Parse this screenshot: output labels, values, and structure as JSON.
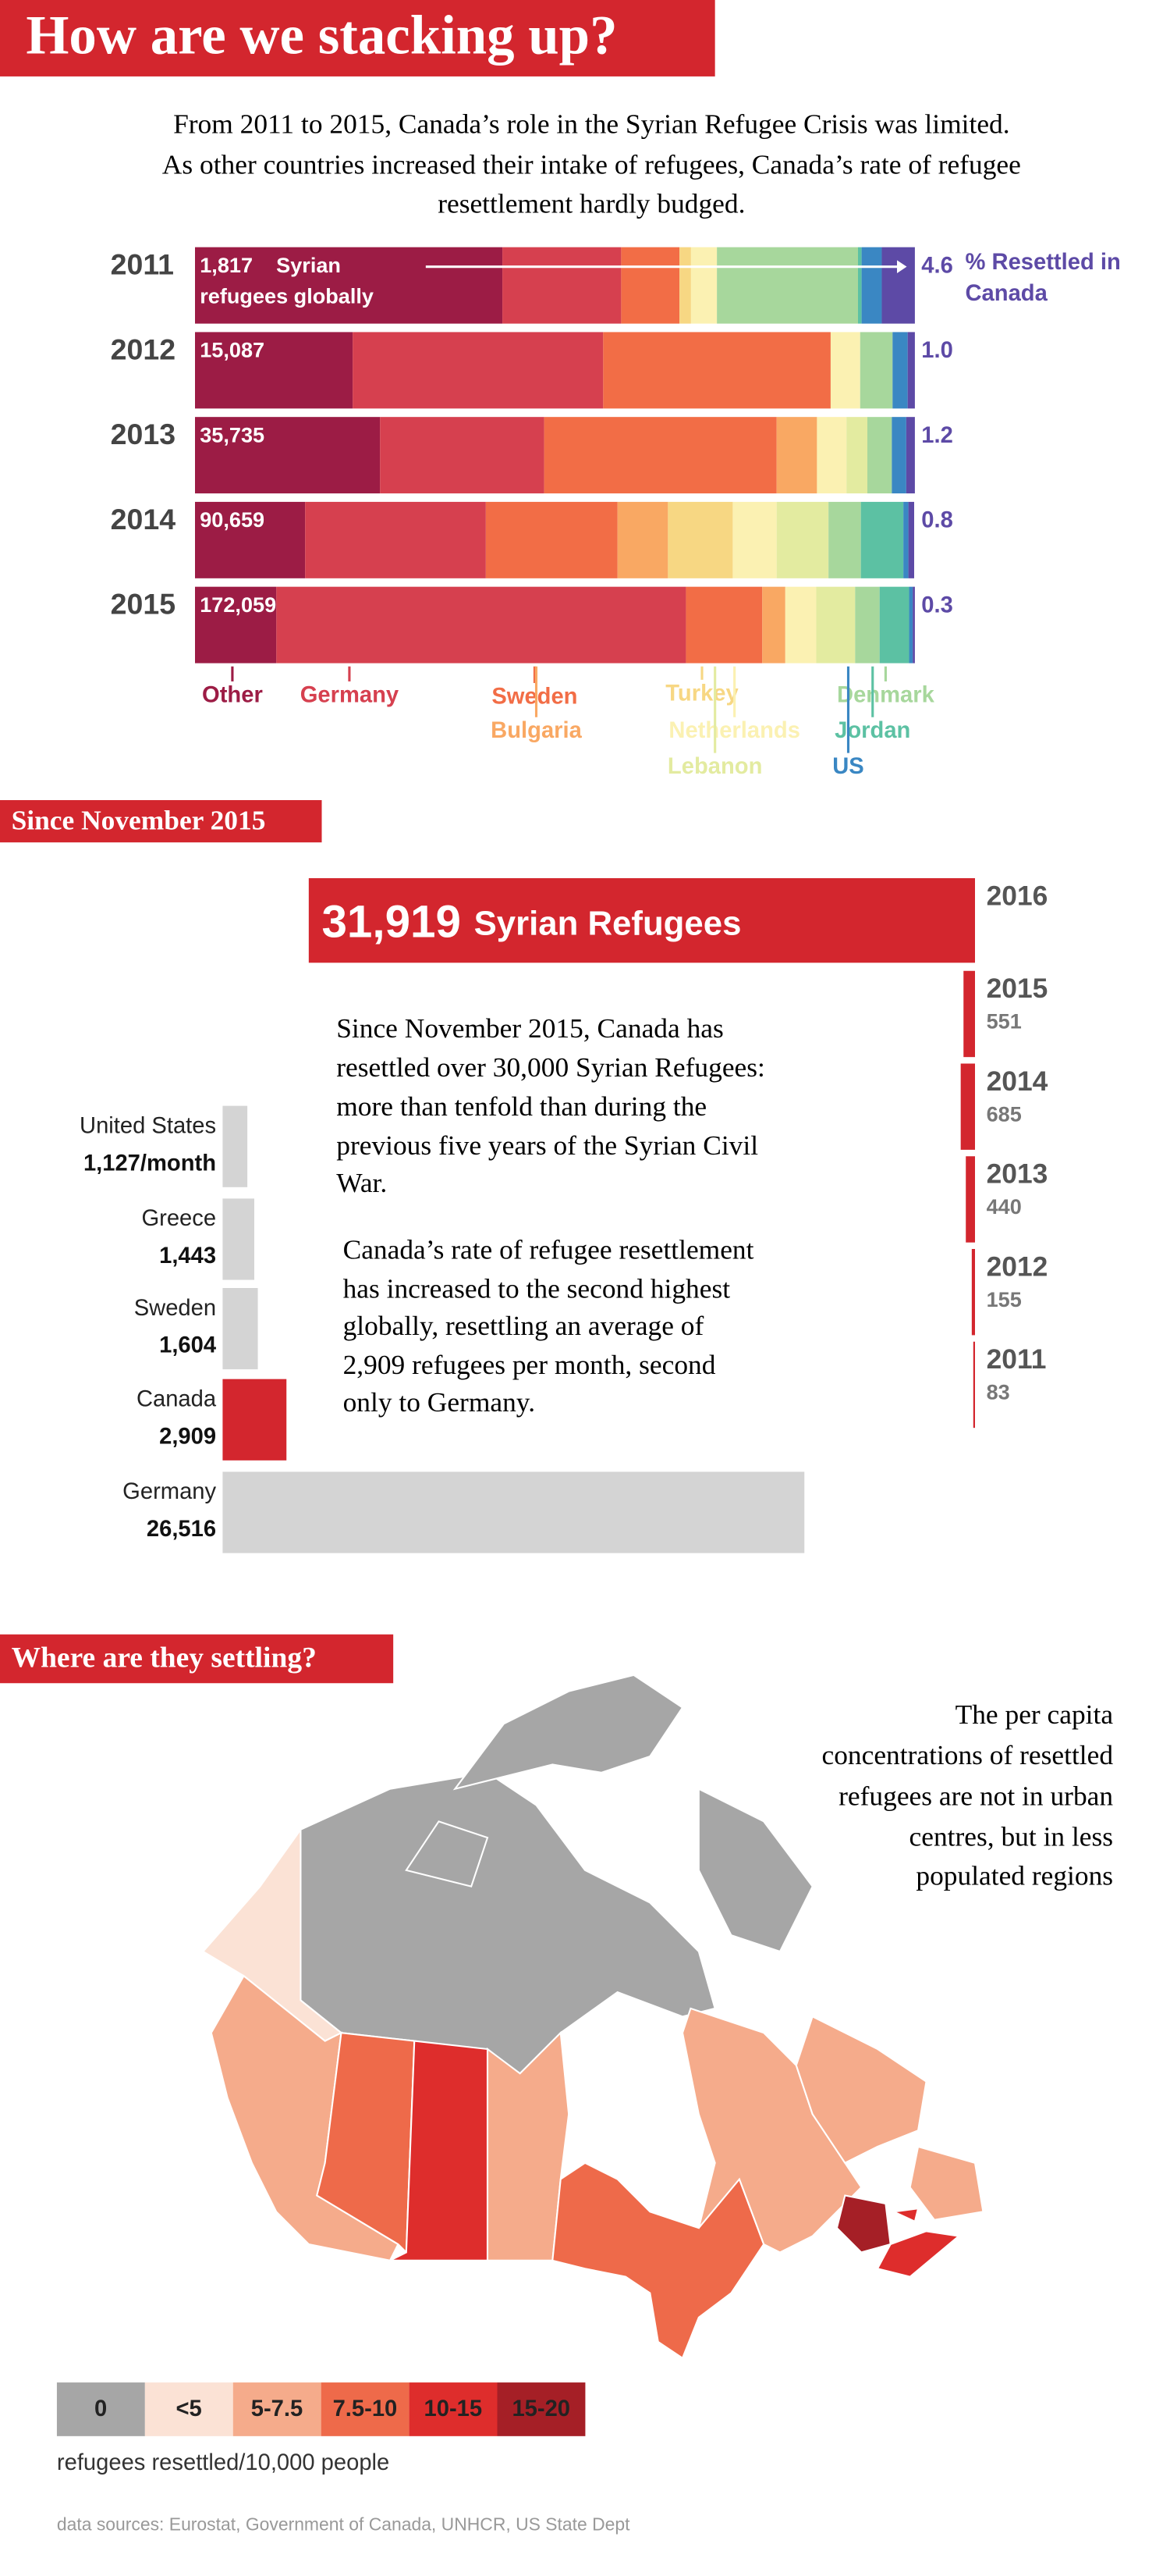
{
  "title": "How are we stacking up?",
  "intro": [
    "From 2011 to 2015, Canada’s role in the Syrian Refugee Crisis was limited.",
    "As other countries increased their intake of refugees, Canada’s rate of refugee",
    "resettlement hardly budged."
  ],
  "chart_data": [
    {
      "type": "stacked-bar",
      "categories": [
        "2011",
        "2012",
        "2013",
        "2014",
        "2015"
      ],
      "xlim": [
        0,
        100
      ],
      "series": [
        {
          "name": "Other",
          "color": "#9c1c45",
          "values": [
            42.7,
            21.9,
            25.7,
            15.3,
            11.3
          ]
        },
        {
          "name": "Germany",
          "color": "#d6404f",
          "values": [
            16.5,
            34.8,
            22.8,
            25.1,
            56.9
          ]
        },
        {
          "name": "Sweden",
          "color": "#f26d46",
          "values": [
            8.1,
            31.6,
            32.3,
            18.3,
            10.6
          ]
        },
        {
          "name": "Bulgaria",
          "color": "#f9a863",
          "values": [
            0,
            0,
            5.6,
            7,
            3.2
          ]
        },
        {
          "name": "Turkey",
          "color": "#f7d783",
          "values": [
            1.6,
            0,
            0,
            9,
            0
          ]
        },
        {
          "name": "Netherlands",
          "color": "#fbf1b2",
          "values": [
            3.6,
            4.1,
            4.1,
            6.1,
            4.3
          ]
        },
        {
          "name": "Lebanon",
          "color": "#e3eba0",
          "values": [
            0,
            0,
            2.9,
            7.2,
            5.4
          ]
        },
        {
          "name": "Denmark",
          "color": "#a7d79c",
          "values": [
            19.6,
            4.5,
            3.4,
            4.5,
            3.4
          ]
        },
        {
          "name": "Jordan",
          "color": "#5cc1a3",
          "values": [
            0.5,
            0,
            0,
            5.9,
            4.1
          ]
        },
        {
          "name": "US",
          "color": "#3a87c3",
          "values": [
            2.8,
            2.1,
            2,
            0.7,
            0.5
          ]
        },
        {
          "name": "Canada",
          "color": "#5d4aa6",
          "values": [
            4.6,
            1,
            1.2,
            0.8,
            0.3
          ],
          "value_labels": [
            "4.6",
            "1.0",
            "1.2",
            "0.8",
            "0.3"
          ]
        }
      ],
      "totals": {
        "values": [
          1817,
          15087,
          35735,
          90659,
          172059
        ],
        "value_labels": [
          "1,817",
          "15,087",
          "35,735",
          "90,659",
          "172,059"
        ]
      },
      "totals_note": [
        "Syrian",
        "refugees globally"
      ],
      "canada_note": "% Resettled in"
    },
    {
      "type": "bar",
      "title": "Since November 2015",
      "categories": [
        "2016",
        "2015",
        "2014",
        "2013",
        "2012",
        "2011"
      ],
      "values": [
        31919,
        551,
        685,
        440,
        155,
        83
      ],
      "value_labels": [
        "31,919",
        "551",
        "685",
        "440",
        "155",
        "83"
      ],
      "color": "#d3262e",
      "note": "Syrian Refugees"
    },
    {
      "type": "bar",
      "categories": [
        "United States",
        "Greece",
        "Sweden",
        "Canada",
        "Germany"
      ],
      "values": [
        1127,
        1443,
        1604,
        2909,
        26516
      ],
      "value_labels": [
        "1,127/month",
        "1,443",
        "1,604",
        "2,909",
        "26,516"
      ],
      "colors": [
        "#d4d4d4",
        "#d4d4d4",
        "#d4d4d4",
        "#d3262e",
        "#d4d4d4"
      ]
    }
  ],
  "paragraphs": [
    [
      "Since November 2015, Canada has",
      "resettled over 30,000 Syrian Refugees:",
      "more than tenfold than during the",
      "previous five years of the Syrian Civil",
      "War."
    ],
    [
      "Canada’s rate of refugee resettlement",
      "has increased to the second highest",
      "globally, resettling an average of",
      "2,909 refugees per month, second",
      "only to Germany."
    ]
  ],
  "map": {
    "title": "Where are they settling?",
    "note": [
      "The per capita",
      "concentrations of resettled",
      "refugees are not in urban",
      "centres, but in less",
      "populated regions"
    ],
    "legend": [
      {
        "label": "0",
        "color": "#a6a6a6"
      },
      {
        "label": "<5",
        "color": "#fbe2d5"
      },
      {
        "label": "5-7.5",
        "color": "#f5ab8b"
      },
      {
        "label": "7.5-10",
        "color": "#ee6a4a"
      },
      {
        "label": "10-15",
        "color": "#de2d2c"
      },
      {
        "label": "15-20",
        "color": "#a51f26"
      }
    ],
    "caption": "refugees resettled/10,000 people"
  },
  "source": "data sources: Eurostat, Government of Canada, UNHCR, US State Dept"
}
